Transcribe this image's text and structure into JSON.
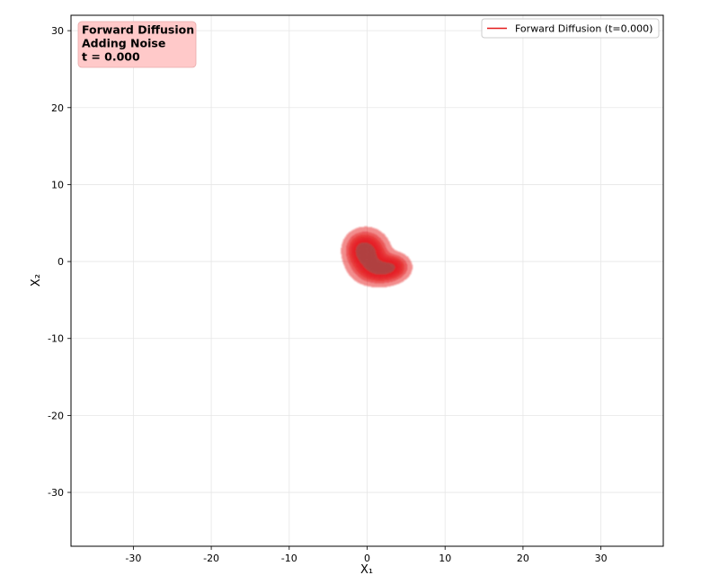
{
  "chart_data": {
    "type": "contour",
    "title": "",
    "xlabel": "X₁",
    "ylabel": "X₂",
    "xlim": [
      -38,
      38
    ],
    "ylim": [
      -37,
      32
    ],
    "xticks": [
      -30,
      -20,
      -10,
      0,
      10,
      20,
      30
    ],
    "yticks": [
      -30,
      -20,
      -10,
      0,
      10,
      20,
      30
    ],
    "grid": true,
    "legend": {
      "placement": "top-right",
      "entries": [
        {
          "label": "Forward Diffusion (t=0.000)",
          "color": "#e41a1c"
        }
      ]
    },
    "annotation": {
      "placement": "top-left",
      "lines": [
        "Forward Diffusion",
        "Adding Noise",
        "t = 0.000"
      ],
      "background": "#ffc9c9"
    },
    "density_components": [
      {
        "x": 0.0,
        "y": 1.0,
        "sx": 1.2,
        "sy": 1.3,
        "w": 1.0
      },
      {
        "x": 1.6,
        "y": -1.0,
        "sx": 1.4,
        "sy": 0.9,
        "w": 0.8
      },
      {
        "x": 3.3,
        "y": -0.6,
        "sx": 1.0,
        "sy": 0.8,
        "w": 0.45
      },
      {
        "x": -0.8,
        "y": 1.8,
        "sx": 1.0,
        "sy": 1.0,
        "w": 0.35
      }
    ],
    "series_color": "#e41a1c"
  }
}
